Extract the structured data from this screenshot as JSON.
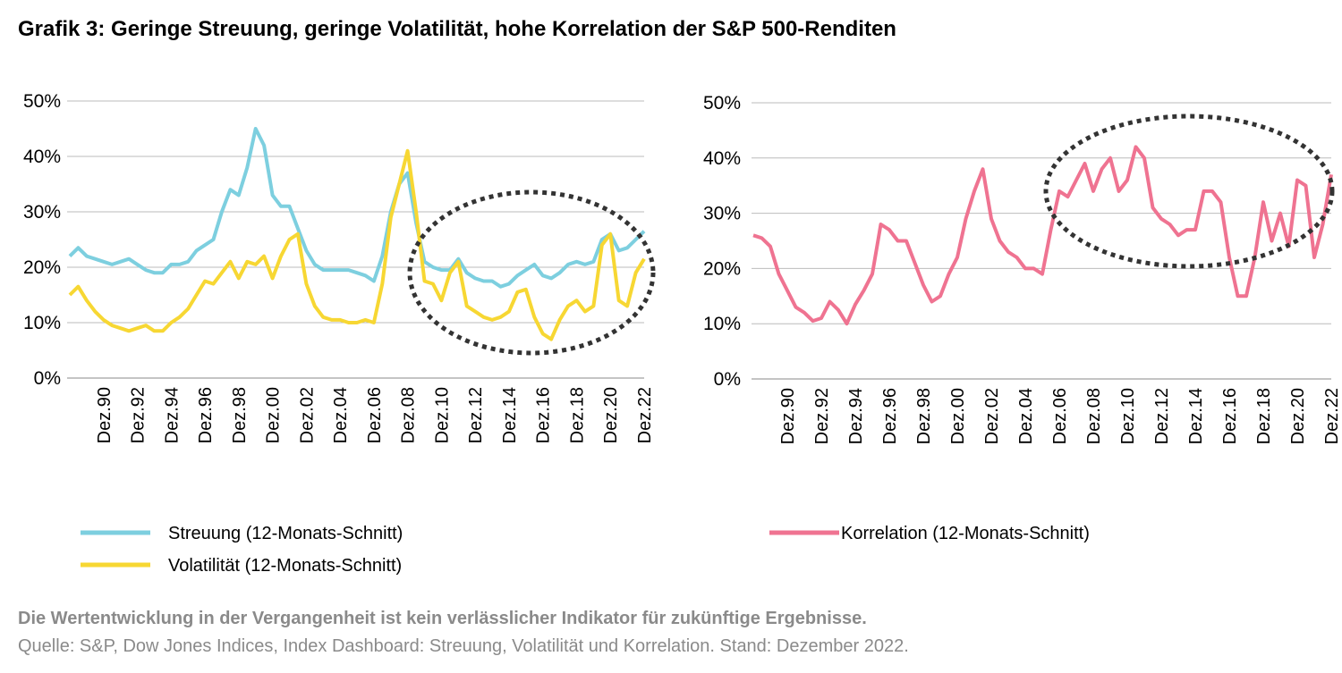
{
  "title": "Grafik 3: Geringe Streuung, geringe Volatilität, hohe Korrelation der S&P 500-Renditen",
  "note": "Die Wertentwicklung in der Vergangenheit ist kein verlässlicher Indikator für zukünftige Ergebnisse.",
  "source": "Quelle: S&P, Dow Jones Indices, Index Dashboard: Streuung, Volatilität und Korrelation. Stand: Dezember 2022.",
  "chart_data": [
    {
      "type": "line",
      "categories": [
        null,
        null,
        null,
        null,
        "Dez.90",
        null,
        null,
        null,
        "Dez.92",
        null,
        null,
        null,
        "Dez.94",
        null,
        null,
        null,
        "Dez.96",
        null,
        null,
        null,
        "Dez.98",
        null,
        null,
        null,
        "Dez.00",
        null,
        null,
        null,
        "Dez.02",
        null,
        null,
        null,
        "Dez.04",
        null,
        null,
        null,
        "Dez.06",
        null,
        null,
        null,
        "Dez.08",
        null,
        null,
        null,
        "Dez.10",
        null,
        null,
        null,
        "Dez.12",
        null,
        null,
        null,
        "Dez.14",
        null,
        null,
        null,
        "Dez.16",
        null,
        null,
        null,
        "Dez.18",
        null,
        null,
        null,
        "Dez.20",
        null,
        null,
        null,
        "Dez.22"
      ],
      "ylim": [
        0,
        50
      ],
      "yticks": [
        {
          "value": 0,
          "label": "0%"
        },
        {
          "value": 10,
          "label": "10%"
        },
        {
          "value": 20,
          "label": "20%"
        },
        {
          "value": 30,
          "label": "30%"
        },
        {
          "value": 40,
          "label": "40%"
        },
        {
          "value": 50,
          "label": "50%"
        }
      ],
      "grid": true,
      "series": [
        {
          "name": "Streuung (12-Monats-Schnitt)",
          "color": "#7dcfdf",
          "values": [
            22,
            23.5,
            22,
            21.5,
            21,
            20.5,
            21,
            21.5,
            20.5,
            19.5,
            19,
            19,
            20.5,
            20.5,
            21,
            23,
            24,
            25,
            30,
            34,
            33,
            38,
            45,
            42,
            33,
            31,
            31,
            27,
            23,
            20.5,
            19.5,
            19.5,
            19.5,
            19.5,
            19,
            18.5,
            17.5,
            22,
            30,
            35,
            37,
            28,
            21,
            20,
            19.5,
            19.5,
            21.5,
            19,
            18,
            17.5,
            17.5,
            16.5,
            17,
            18.5,
            19.5,
            20.5,
            18.5,
            18,
            19,
            20.5,
            21,
            20.5,
            21,
            25,
            26,
            23,
            23.5,
            25,
            26.5
          ]
        },
        {
          "name": "Volatilität (12-Monats-Schnitt)",
          "color": "#f7d733",
          "values": [
            15,
            16.5,
            14,
            12,
            10.5,
            9.5,
            9,
            8.5,
            9,
            9.5,
            8.5,
            8.5,
            10,
            11,
            12.5,
            15,
            17.5,
            17,
            19,
            21,
            18,
            21,
            20.5,
            22,
            18,
            22,
            25,
            26,
            17,
            13,
            11,
            10.5,
            10.5,
            10,
            10,
            10.5,
            10,
            17,
            29,
            35,
            41,
            30,
            17.5,
            17,
            14,
            19,
            21,
            13,
            12,
            11,
            10.5,
            11,
            12,
            15.5,
            16,
            11,
            8,
            7,
            10.5,
            13,
            14,
            12,
            13,
            24,
            26,
            14,
            13,
            19,
            21.5
          ]
        }
      ]
    },
    {
      "type": "line",
      "categories": [
        null,
        null,
        null,
        null,
        "Dez.90",
        null,
        null,
        null,
        "Dez.92",
        null,
        null,
        null,
        "Dez.94",
        null,
        null,
        null,
        "Dez.96",
        null,
        null,
        null,
        "Dez.98",
        null,
        null,
        null,
        "Dez.00",
        null,
        null,
        null,
        "Dez.02",
        null,
        null,
        null,
        "Dez.04",
        null,
        null,
        null,
        "Dez.06",
        null,
        null,
        null,
        "Dez.08",
        null,
        null,
        null,
        "Dez.10",
        null,
        null,
        null,
        "Dez.12",
        null,
        null,
        null,
        "Dez.14",
        null,
        null,
        null,
        "Dez.16",
        null,
        null,
        null,
        "Dez.18",
        null,
        null,
        null,
        "Dez.20",
        null,
        null,
        null,
        "Dez.22"
      ],
      "ylim": [
        0,
        50
      ],
      "yticks": [
        {
          "value": 0,
          "label": "0%"
        },
        {
          "value": 10,
          "label": "10%"
        },
        {
          "value": 20,
          "label": "20%"
        },
        {
          "value": 30,
          "label": "30%"
        },
        {
          "value": 40,
          "label": "40%"
        },
        {
          "value": 50,
          "label": "50%"
        }
      ],
      "grid": true,
      "series": [
        {
          "name": "Korrelation (12-Monats-Schnitt)",
          "color": "#ef7391",
          "values": [
            26,
            25.5,
            24,
            19,
            16,
            13,
            12,
            10.5,
            11,
            14,
            12.5,
            10,
            13.5,
            16,
            19,
            28,
            27,
            25,
            25,
            21,
            17,
            14,
            15,
            19,
            22,
            29,
            34,
            38,
            29,
            25,
            23,
            22,
            20,
            20,
            19,
            27,
            34,
            33,
            36,
            39,
            34,
            38,
            40,
            34,
            36,
            42,
            40,
            31,
            29,
            28,
            26,
            27,
            27,
            34,
            34,
            32,
            22,
            15,
            15,
            22,
            32,
            25,
            30,
            24,
            36,
            35,
            22,
            28,
            37
          ]
        }
      ]
    }
  ]
}
